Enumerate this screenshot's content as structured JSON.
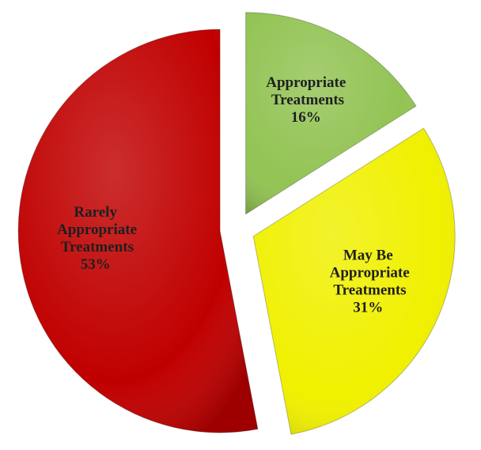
{
  "chart_data": {
    "type": "pie",
    "categories": [
      "Appropriate Treatments",
      "May Be Appropriate Treatments",
      "Rarely Appropriate Treatments"
    ],
    "values": [
      16,
      31,
      53
    ],
    "value_labels": [
      "16%",
      "31%",
      "53%"
    ],
    "colors": [
      "#92c353",
      "#f0f000",
      "#c00000"
    ],
    "exploded": true
  }
}
